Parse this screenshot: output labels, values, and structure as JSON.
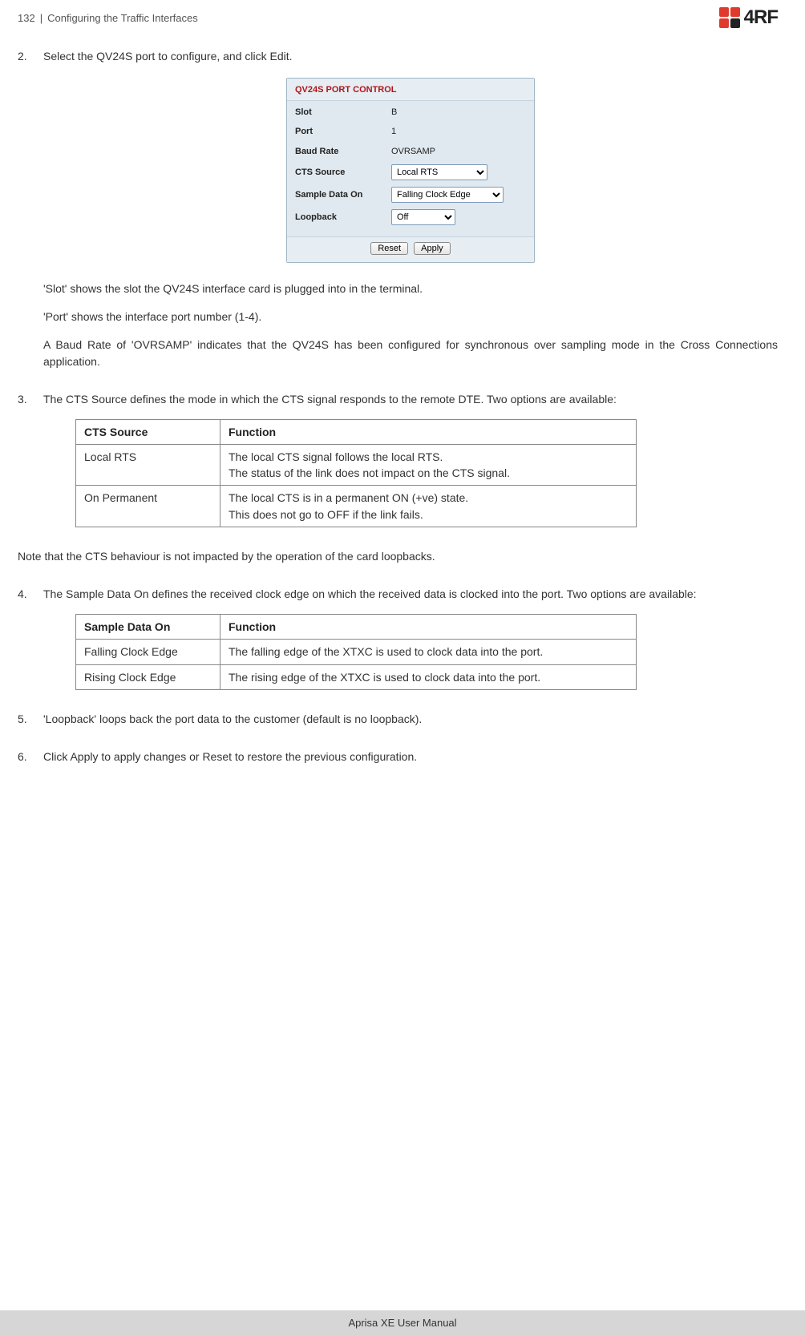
{
  "header": {
    "page_num": "132",
    "sep": "|",
    "section": "Configuring the Traffic Interfaces"
  },
  "logo": {
    "text": "4RF",
    "colors": {
      "tl": "#e03a2f",
      "tr": "#e03a2f",
      "bl": "#e03a2f",
      "br": "#222222"
    }
  },
  "step2": {
    "text": "Select the QV24S port to configure, and click Edit.",
    "p1": "'Slot' shows the slot the QV24S interface card is plugged into in the terminal.",
    "p2": "'Port' shows the interface port number (1-4).",
    "p3": "A Baud Rate of 'OVRSAMP' indicates that the QV24S has been configured for synchronous over sampling mode in the Cross Connections application."
  },
  "panel": {
    "title": "QV24S PORT CONTROL",
    "rows": {
      "slot": {
        "label": "Slot",
        "value": "B"
      },
      "port": {
        "label": "Port",
        "value": "1"
      },
      "baud": {
        "label": "Baud Rate",
        "value": "OVRSAMP"
      },
      "cts": {
        "label": "CTS Source",
        "value": "Local RTS"
      },
      "sample": {
        "label": "Sample Data On",
        "value": "Falling Clock Edge"
      },
      "loop": {
        "label": "Loopback",
        "value": "Off"
      }
    },
    "buttons": {
      "reset": "Reset",
      "apply": "Apply"
    }
  },
  "step3": {
    "text": "The CTS Source defines the mode in which the CTS signal responds to the remote DTE. Two options are available:",
    "table": {
      "h1": "CTS Source",
      "h2": "Function",
      "r1c1": "Local RTS",
      "r1c2": "The local CTS signal follows the local RTS.\nThe status of the link does not impact on the CTS signal.",
      "r2c1": "On Permanent",
      "r2c2": "The local CTS is in a permanent ON (+ve) state.\nThis does not go to OFF if the link fails."
    }
  },
  "note": "Note that the CTS behaviour is not impacted by the operation of the card loopbacks.",
  "step4": {
    "text": "The Sample Data On defines the received clock edge on which the received data is clocked into the port. Two options are available:",
    "table": {
      "h1": "Sample Data On",
      "h2": "Function",
      "r1c1": "Falling Clock Edge",
      "r1c2": "The falling edge of the XTXC is used to clock data into the port.",
      "r2c1": "Rising Clock Edge",
      "r2c2": "The rising edge of the XTXC is used to clock data into the port."
    }
  },
  "step5": {
    "text": " 'Loopback' loops back the port data to the customer (default is no loopback)."
  },
  "step6": {
    "text": "Click Apply to apply changes or Reset to restore the previous configuration."
  },
  "footer": "Aprisa XE User Manual"
}
